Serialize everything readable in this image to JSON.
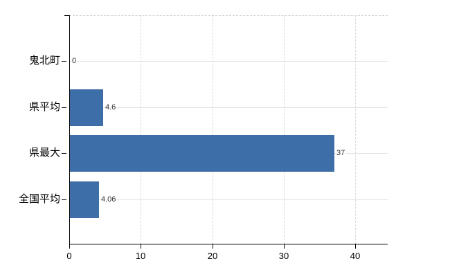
{
  "chart_data": {
    "type": "bar",
    "orientation": "horizontal",
    "title": "",
    "xlabel": "",
    "ylabel": "",
    "categories": [
      "鬼北町",
      "県平均",
      "県最大",
      "全国平均"
    ],
    "values": [
      0,
      4.6,
      37,
      4.06
    ],
    "value_labels": [
      "0",
      "4.6",
      "37",
      "4.06"
    ],
    "x_ticks": [
      0,
      10,
      20,
      30,
      40
    ],
    "x_tick_labels": [
      "0",
      "10",
      "20",
      "30",
      "40"
    ],
    "xlim": [
      0,
      44.5
    ],
    "grid": true,
    "legend": false,
    "colors": {
      "bar": "#3e6ea8",
      "axis": "#000000",
      "grid_horizontal": "#dce3dc",
      "grid_vertical": "#d8d8d8",
      "grid_top": "#d2d2d2",
      "value_label_text": "#333333",
      "tick_label_text": "#000000",
      "background": "#ffffff"
    }
  }
}
